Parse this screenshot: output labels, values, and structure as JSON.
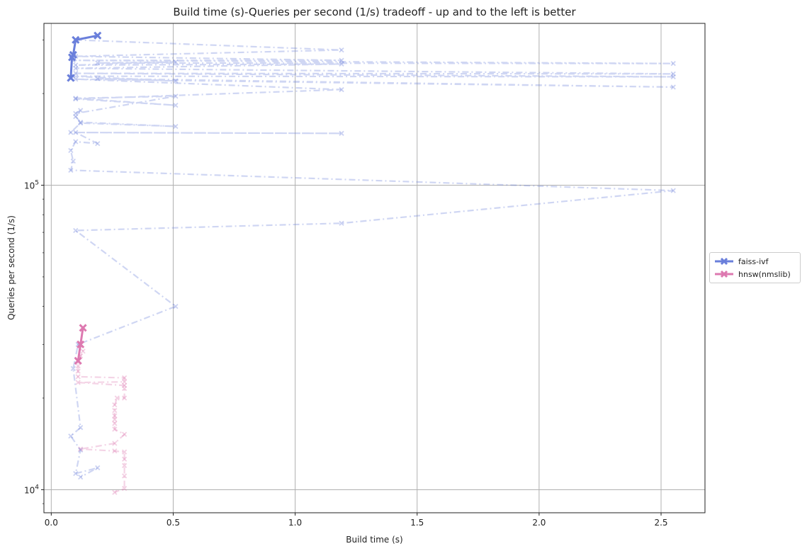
{
  "chart_data": {
    "type": "line",
    "title": "Build time (s)-Queries per second (1/s) tradeoff - up and to the left is better",
    "xlabel": "Build time (s)",
    "ylabel": "Queries per second (1/s)",
    "xlim": [
      -0.03,
      2.68
    ],
    "ylim": [
      8400,
      340000
    ],
    "yscale": "log",
    "grid": true,
    "legend_position": "right-outside",
    "x_ticks": [
      {
        "value": 0.0,
        "label": "0.0"
      },
      {
        "value": 0.5,
        "label": "0.5"
      },
      {
        "value": 1.0,
        "label": "1.0"
      },
      {
        "value": 1.5,
        "label": "1.5"
      },
      {
        "value": 2.0,
        "label": "2.0"
      },
      {
        "value": 2.5,
        "label": "2.5"
      }
    ],
    "y_ticks": [
      {
        "value": 10000,
        "base": "10",
        "exp": "4"
      },
      {
        "value": 100000,
        "base": "10",
        "exp": "5"
      }
    ],
    "series": [
      {
        "name": "faiss-ivf",
        "color": "#6a7fdb",
        "pareto": [
          [
            0.08,
            225000
          ],
          [
            0.085,
            263000
          ],
          [
            0.09,
            268000
          ],
          [
            0.1,
            300000
          ],
          [
            0.19,
            310000
          ]
        ],
        "all": [
          [
            0.1,
            300000
          ],
          [
            1.19,
            278000
          ],
          [
            0.1,
            265000
          ],
          [
            1.19,
            257000
          ],
          [
            0.09,
            257000
          ],
          [
            2.55,
            251000
          ],
          [
            0.19,
            252000
          ],
          [
            0.51,
            254000
          ],
          [
            0.1,
            248000
          ],
          [
            1.19,
            250000
          ],
          [
            0.1,
            242000
          ],
          [
            2.55,
            232000
          ],
          [
            0.1,
            233000
          ],
          [
            2.55,
            227000
          ],
          [
            0.09,
            228000
          ],
          [
            0.51,
            220000
          ],
          [
            0.19,
            224000
          ],
          [
            2.55,
            210000
          ],
          [
            0.1,
            223000
          ],
          [
            1.19,
            206000
          ],
          [
            0.1,
            192000
          ],
          [
            0.51,
            183000
          ],
          [
            0.1,
            193000
          ],
          [
            0.51,
            196000
          ],
          [
            0.1,
            172000
          ],
          [
            0.12,
            176000
          ],
          [
            0.1,
            168000
          ],
          [
            0.12,
            161000
          ],
          [
            0.51,
            156000
          ],
          [
            0.12,
            160000
          ],
          [
            0.08,
            149000
          ],
          [
            1.19,
            148000
          ],
          [
            0.1,
            149000
          ],
          [
            0.19,
            137000
          ],
          [
            0.1,
            139000
          ],
          [
            0.08,
            130000
          ],
          [
            0.09,
            120000
          ],
          [
            0.08,
            112000
          ],
          [
            2.55,
            96000
          ],
          [
            1.19,
            75000
          ],
          [
            0.1,
            71000
          ],
          [
            0.51,
            40000
          ],
          [
            0.11,
            30000
          ],
          [
            0.09,
            25000
          ],
          [
            0.12,
            16000
          ],
          [
            0.08,
            15000
          ],
          [
            0.12,
            13500
          ],
          [
            0.1,
            11300
          ],
          [
            0.19,
            11800
          ],
          [
            0.12,
            11000
          ]
        ]
      },
      {
        "name": "hnsw(nmslib)",
        "color": "#dd79b0",
        "pareto": [
          [
            0.11,
            26500
          ],
          [
            0.12,
            30000
          ],
          [
            0.13,
            34000
          ]
        ],
        "all": [
          [
            0.13,
            34000
          ],
          [
            0.12,
            30000
          ],
          [
            0.13,
            28500
          ],
          [
            0.12,
            27500
          ],
          [
            0.11,
            26500
          ],
          [
            0.11,
            25500
          ],
          [
            0.11,
            24500
          ],
          [
            0.11,
            23500
          ],
          [
            0.3,
            23300
          ],
          [
            0.3,
            22600
          ],
          [
            0.11,
            22500
          ],
          [
            0.3,
            22000
          ],
          [
            0.3,
            21500
          ],
          [
            0.3,
            20000
          ],
          [
            0.27,
            20000
          ],
          [
            0.26,
            19000
          ],
          [
            0.26,
            18200
          ],
          [
            0.26,
            17500
          ],
          [
            0.26,
            17000
          ],
          [
            0.26,
            16500
          ],
          [
            0.26,
            15800
          ],
          [
            0.3,
            15200
          ],
          [
            0.26,
            14200
          ],
          [
            0.12,
            13600
          ],
          [
            0.26,
            13400
          ],
          [
            0.3,
            13300
          ],
          [
            0.3,
            12600
          ],
          [
            0.3,
            12000
          ],
          [
            0.3,
            11100
          ],
          [
            0.3,
            10100
          ],
          [
            0.26,
            9800
          ]
        ]
      }
    ]
  }
}
